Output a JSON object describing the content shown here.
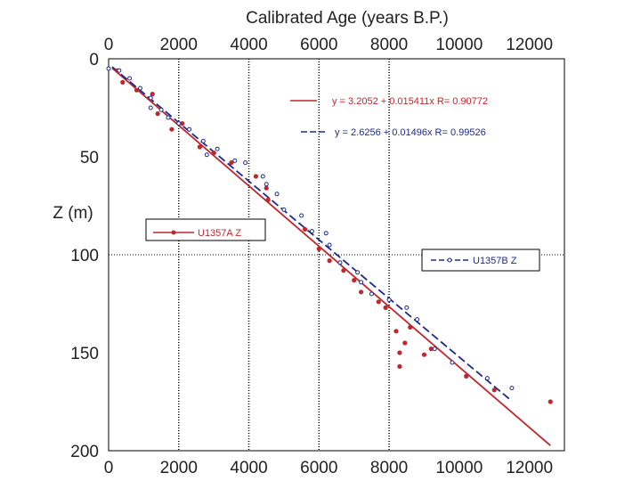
{
  "chart_data": {
    "type": "scatter",
    "title": "Calibrated Age (years B.P.)",
    "xlabel": "Calibrated Age (years B.P.)",
    "ylabel": "Z (m)",
    "xlim": [
      0,
      13000
    ],
    "ylim": [
      0,
      200
    ],
    "y_inverted": true,
    "x_ticks": [
      0,
      2000,
      4000,
      6000,
      8000,
      10000,
      12000
    ],
    "y_ticks": [
      0,
      50,
      100,
      150,
      200
    ],
    "x_tick_labels": [
      "0",
      "2000",
      "4000",
      "6000",
      "8000",
      "10000",
      "12000"
    ],
    "y_tick_labels": [
      "0",
      "50",
      "100",
      "150",
      "200"
    ],
    "gridlines": {
      "vertical_dotted_at": [
        2000,
        4000,
        6000,
        8000
      ],
      "horizontal_dotted_at": [
        100
      ]
    },
    "series": [
      {
        "name": "U1357A Z",
        "color": "#c0272d",
        "marker": "filled-dot",
        "x": [
          250,
          400,
          800,
          1250,
          1400,
          1800,
          2100,
          2600,
          3000,
          3500,
          4200,
          4500,
          4550,
          5600,
          6000,
          6300,
          6700,
          7000,
          7200,
          7700,
          7900,
          8200,
          8300,
          8300,
          8450,
          8600,
          9000,
          9200,
          10200,
          11000,
          12600
        ],
        "y": [
          6,
          12,
          16,
          18,
          28,
          36,
          33,
          45,
          48,
          53,
          60,
          66,
          72,
          87,
          97,
          103,
          108,
          113,
          119,
          124,
          127,
          139,
          150,
          157,
          145,
          137,
          151,
          148,
          162,
          169,
          175
        ]
      },
      {
        "name": "U1357B Z",
        "color": "#1e2a8c",
        "marker": "open-circle",
        "x": [
          0,
          300,
          600,
          900,
          1200,
          1200,
          1500,
          1700,
          2000,
          2300,
          2700,
          2800,
          3100,
          3600,
          3900,
          4400,
          4500,
          4800,
          5000,
          5500,
          5800,
          6200,
          6300,
          6600,
          7100,
          7200,
          7500,
          8000,
          8500,
          8800,
          9300,
          9800,
          10800,
          11500
        ],
        "y": [
          5,
          6,
          10,
          15,
          20,
          25,
          26,
          30,
          33,
          36,
          42,
          49,
          46,
          52,
          53,
          60,
          64,
          69,
          77,
          80,
          88,
          89,
          95,
          104,
          109,
          114,
          120,
          123,
          127,
          133,
          148,
          155,
          163,
          168
        ]
      }
    ],
    "fits": [
      {
        "series": "U1357A Z",
        "label": "y = 3.2052 + 0.015411x   R= 0.90772",
        "intercept": 3.2052,
        "slope": 0.015411,
        "x_range": [
          100,
          12600
        ],
        "style": "solid",
        "color": "#c0272d"
      },
      {
        "series": "U1357B Z",
        "label": "y = 2.6256 + 0.01496x   R= 0.99526",
        "intercept": 2.6256,
        "slope": 0.01496,
        "x_range": [
          100,
          11500
        ],
        "style": "dashed",
        "color": "#1e2a8c"
      }
    ],
    "legends": [
      {
        "label": "U1357A Z",
        "color": "#c0272d",
        "placement": "left-middle"
      },
      {
        "label": "U1357B Z",
        "color": "#1e2a8c",
        "placement": "right-middle"
      }
    ]
  }
}
